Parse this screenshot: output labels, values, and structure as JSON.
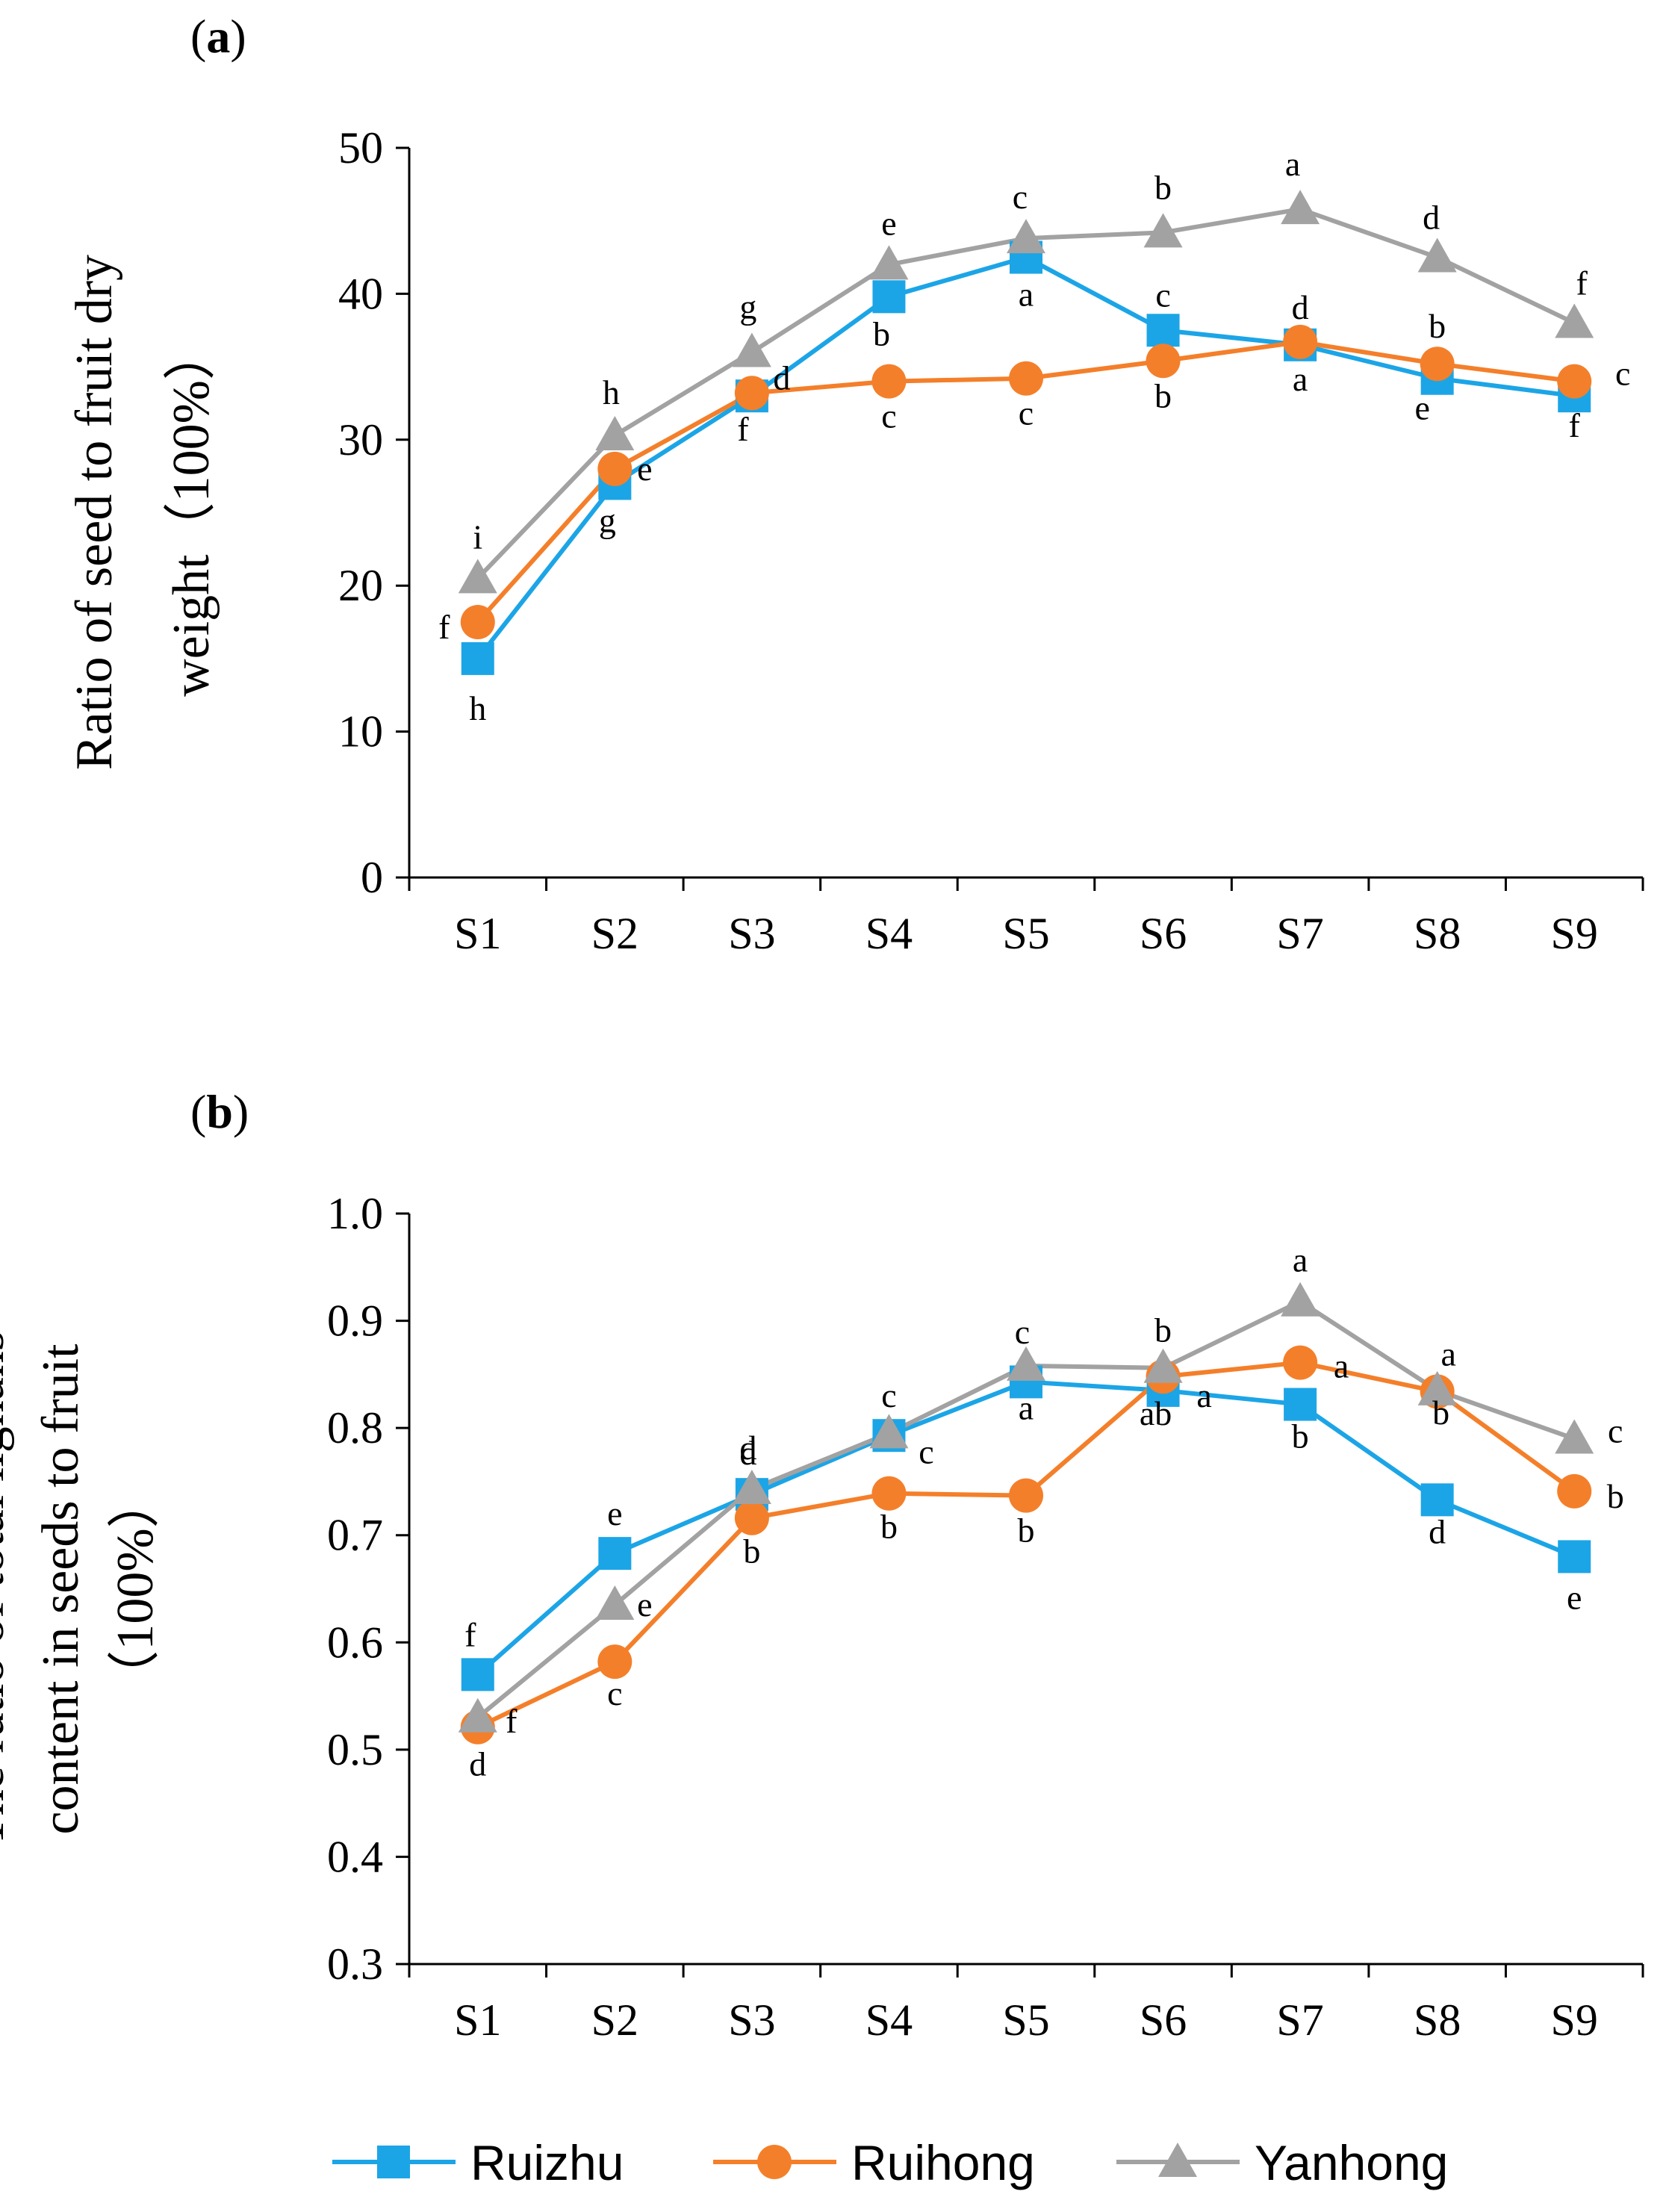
{
  "colors": {
    "Ruizhu": "#1ca5e6",
    "Ruihong": "#f47f2a",
    "Yanhong": "#a2a2a2",
    "axis": "#000000"
  },
  "legend": [
    {
      "name": "Ruizhu",
      "marker": "square"
    },
    {
      "name": "Ruihong",
      "marker": "circle"
    },
    {
      "name": "Yanhong",
      "marker": "triangle"
    }
  ],
  "chart_data": [
    {
      "panel": "a",
      "type": "line",
      "ylabel_lines": [
        "Ratio of seed to fruit dry",
        "weight（100%）"
      ],
      "categories": [
        "S1",
        "S2",
        "S3",
        "S4",
        "S5",
        "S6",
        "S7",
        "S8",
        "S9"
      ],
      "ylim": [
        0,
        50
      ],
      "yticks": [
        "0",
        "10",
        "20",
        "30",
        "40",
        "50"
      ],
      "yticks_values": [
        0,
        10,
        20,
        30,
        40,
        50
      ],
      "series": [
        {
          "name": "Ruizhu",
          "marker": "square",
          "values": [
            15.0,
            27.0,
            33.0,
            39.8,
            42.5,
            37.5,
            36.5,
            34.2,
            33.0
          ],
          "letters": [
            "h",
            "g",
            "f",
            "b",
            "a",
            "c",
            "d",
            "e",
            "f"
          ]
        },
        {
          "name": "Ruihong",
          "marker": "circle",
          "values": [
            17.5,
            28.0,
            33.2,
            34.0,
            34.2,
            35.4,
            36.7,
            35.2,
            34.0
          ],
          "letters": [
            "f",
            "e",
            "d",
            "c",
            "c",
            "b",
            "a",
            "b",
            "c"
          ]
        },
        {
          "name": "Yanhong",
          "marker": "triangle",
          "values": [
            20.5,
            30.3,
            36.0,
            42.0,
            43.8,
            44.2,
            45.8,
            42.5,
            38.0
          ],
          "letters": [
            "i",
            "h",
            "g",
            "e",
            "c",
            "b",
            "a",
            "d",
            "f"
          ]
        }
      ]
    },
    {
      "panel": "b",
      "type": "line",
      "ylabel_lines": [
        "The ratio of total lignans",
        "content in seeds to fruit",
        "（100%）"
      ],
      "categories": [
        "S1",
        "S2",
        "S3",
        "S4",
        "S5",
        "S6",
        "S7",
        "S8",
        "S9"
      ],
      "ylim": [
        0.3,
        1.0
      ],
      "yticks": [
        "0.3",
        "0.4",
        "0.5",
        "0.6",
        "0.7",
        "0.8",
        "0.9",
        "1.0"
      ],
      "yticks_values": [
        0.3,
        0.4,
        0.5,
        0.6,
        0.7,
        0.8,
        0.9,
        1.0
      ],
      "series": [
        {
          "name": "Ruizhu",
          "marker": "square",
          "values": [
            0.57,
            0.683,
            0.738,
            0.793,
            0.843,
            0.835,
            0.822,
            0.733,
            0.68
          ],
          "letters": [
            "f",
            "e",
            "d",
            "c",
            "a",
            "a",
            "b",
            "d",
            "e"
          ]
        },
        {
          "name": "Ruihong",
          "marker": "circle",
          "values": [
            0.521,
            0.582,
            0.716,
            0.739,
            0.737,
            0.848,
            0.861,
            0.834,
            0.741
          ],
          "letters": [
            "d",
            "c",
            "b",
            "b",
            "b",
            "ab",
            "a",
            "a",
            "b"
          ]
        },
        {
          "name": "Yanhong",
          "marker": "triangle",
          "values": [
            0.53,
            0.635,
            0.743,
            0.795,
            0.858,
            0.856,
            0.918,
            0.835,
            0.79
          ],
          "letters": [
            "f",
            "e",
            "d",
            "c",
            "c",
            "b",
            "a",
            "b",
            "c"
          ]
        }
      ]
    }
  ]
}
